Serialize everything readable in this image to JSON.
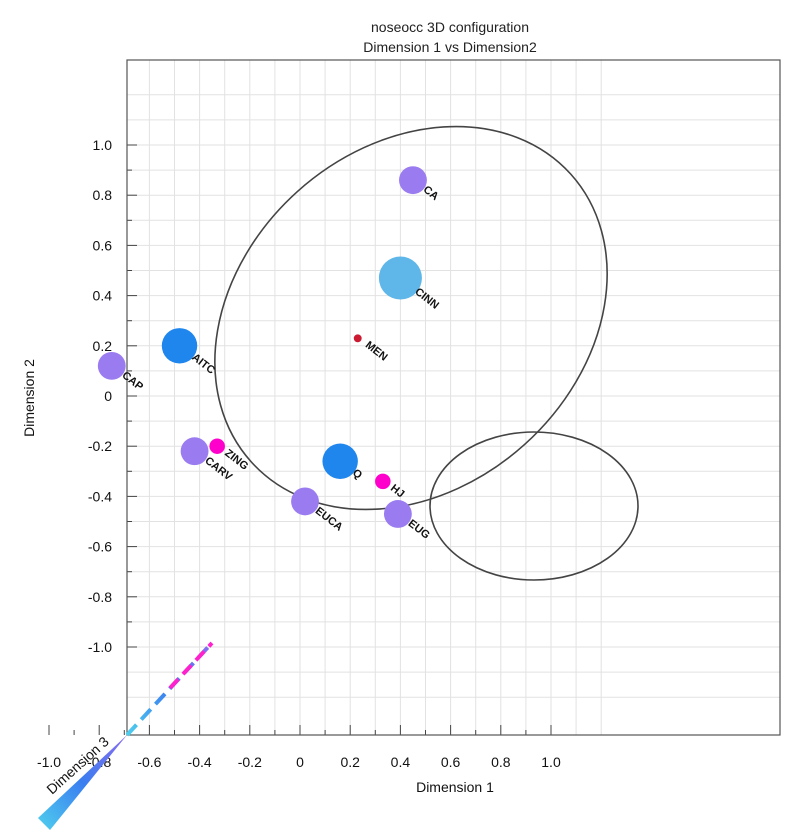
{
  "chart_data": {
    "type": "scatter",
    "title": "noseocc 3D configuration",
    "subtitle": "Dimension 1 vs Dimension2",
    "xlabel": "Dimension 1",
    "ylabel": "Dimension 2",
    "zlabel": "Dimension 3",
    "xlim": [
      -1.0,
      1.0
    ],
    "ylim": [
      -1.0,
      1.0
    ],
    "x_ticks": [
      "-1.0",
      "-0.8",
      "-0.6",
      "-0.4",
      "-0.2",
      "0",
      "0.2",
      "0.4",
      "0.6",
      "0.8",
      "1.0"
    ],
    "y_ticks": [
      "1.0",
      "0.8",
      "0.6",
      "0.4",
      "0.2",
      "0",
      "-0.2",
      "-0.4",
      "-0.6",
      "-0.8",
      "-1.0"
    ],
    "grid": true,
    "colors": {
      "low_dim3": "#ff00cc",
      "mid_dim3": "#9a7cf0",
      "high_dim3": "#1f86ee",
      "top_dim3": "#5fb6e8",
      "marker_small": "#cc1a33"
    },
    "points": [
      {
        "label": "CA",
        "x": 0.45,
        "y": 0.86,
        "z": 0.15,
        "color": "#9a7cf0"
      },
      {
        "label": "CINN",
        "x": 0.4,
        "y": 0.47,
        "z": 0.95,
        "color": "#5fb6e8"
      },
      {
        "label": "MEN",
        "x": 0.23,
        "y": 0.23,
        "z": -0.9,
        "color": "#cc1a33"
      },
      {
        "label": "AITC",
        "x": -0.48,
        "y": 0.2,
        "z": 0.55,
        "color": "#1f86ee"
      },
      {
        "label": "CAP",
        "x": -0.75,
        "y": 0.12,
        "z": 0.15,
        "color": "#9a7cf0"
      },
      {
        "label": "ZING",
        "x": -0.33,
        "y": -0.2,
        "z": -0.5,
        "color": "#ff00cc"
      },
      {
        "label": "CARV",
        "x": -0.42,
        "y": -0.22,
        "z": 0.15,
        "color": "#9a7cf0"
      },
      {
        "label": "Q",
        "x": 0.16,
        "y": -0.26,
        "z": 0.55,
        "color": "#1f86ee"
      },
      {
        "label": "HJ",
        "x": 0.33,
        "y": -0.34,
        "z": -0.5,
        "color": "#ff00cc"
      },
      {
        "label": "EUCA",
        "x": 0.02,
        "y": -0.42,
        "z": 0.15,
        "color": "#9a7cf0"
      },
      {
        "label": "EUG",
        "x": 0.39,
        "y": -0.47,
        "z": 0.15,
        "color": "#9a7cf0"
      }
    ]
  }
}
